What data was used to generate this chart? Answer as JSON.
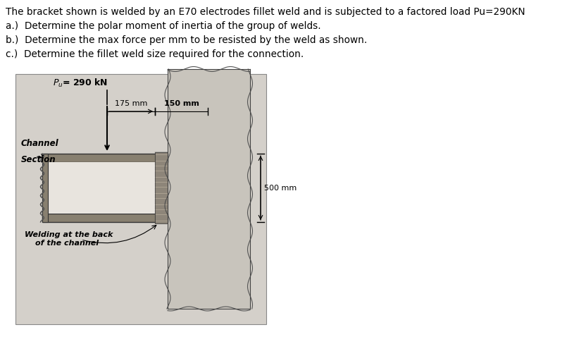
{
  "bg_color": "#d8d4ce",
  "text_lines": [
    "The bracket shown is welded by an E70 electrodes fillet weld and is subjected to a factored load Pu=290KN",
    "a.)  Determine the polar moment of inertia of the group of welds.",
    "b.)  Determine the max force per mm to be resisted by the weld as shown.",
    "c.)  Determine the fillet weld size required for the connection."
  ],
  "load_label": "$P_u$= 290 kN",
  "dim1_label": "175 mm",
  "dim2_label": "150 mm",
  "height_label": "500 mm",
  "channel_label_1": "Channel",
  "channel_label_2": "Section",
  "weld_label_1": "Welding at the back",
  "weld_label_2": "of the channel"
}
